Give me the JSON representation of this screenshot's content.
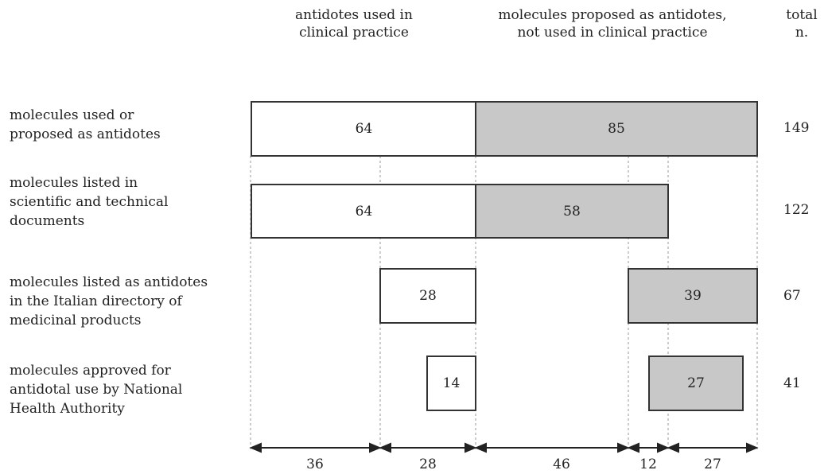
{
  "headers": {
    "clinical": "antidotes used in\nclinical practice",
    "proposed": "molecules proposed as antidotes,\nnot used in clinical practice",
    "total": "total\nn."
  },
  "rows": [
    {
      "label": "molecules used or\nproposed as antidotes",
      "clinical": "64",
      "proposed": "85",
      "total": "149"
    },
    {
      "label": "molecules listed in\nscientific and technical\ndocuments",
      "clinical": "64",
      "proposed": "58",
      "total": "122"
    },
    {
      "label": "molecules listed as antidotes\nin the Italian directory of\nmedicinal products",
      "clinical": "28",
      "proposed": "39",
      "total": "67"
    },
    {
      "label": "molecules approved for\nantidotal use by National\nHealth Authority",
      "clinical": "14",
      "proposed": "27",
      "total": "41"
    }
  ],
  "segments": [
    "36",
    "28",
    "46",
    "12",
    "27"
  ],
  "colors": {
    "clinical_fill": "#ffffff",
    "proposed_fill": "#c8c8c8",
    "border": "#333333"
  }
}
